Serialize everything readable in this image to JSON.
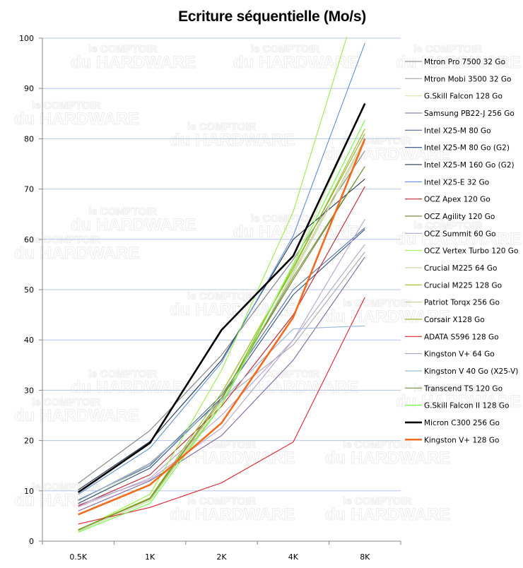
{
  "chart_data": {
    "type": "line",
    "title": "Ecriture séquentielle (Mo/s)",
    "xlabel": "",
    "ylabel": "",
    "categories": [
      "0.5K",
      "1K",
      "2K",
      "4K",
      "8K"
    ],
    "ylim": [
      0,
      100
    ],
    "yticks": [
      0,
      10,
      20,
      30,
      40,
      50,
      60,
      70,
      80,
      90,
      100
    ],
    "grid": true,
    "legend_position": "right",
    "watermark": [
      "le COMPTOIR",
      "du HARDWARE"
    ],
    "series": [
      {
        "name": "Mtron Pro 7500 32 Go",
        "color": "#7f7f7f",
        "values": [
          11.5,
          22.0,
          37.0,
          56.0,
          77.6
        ]
      },
      {
        "name": "Mtron Mobi 3500 32 Go",
        "color": "#a6a6a6",
        "values": [
          8.0,
          15.5,
          28.0,
          39.0,
          57.5
        ]
      },
      {
        "name": "G.Skill Falcon 128 Go",
        "color": "#d7e4a8",
        "values": [
          7.5,
          15.0,
          29.0,
          55.0,
          87.2
        ]
      },
      {
        "name": "Samsung PB22-J 256 Go",
        "color": "#8064a2",
        "values": [
          6.0,
          12.0,
          21.0,
          36.0,
          56.5
        ]
      },
      {
        "name": "Intel X25-M 80 Go",
        "color": "#4f6d9a",
        "values": [
          8.2,
          15.0,
          29.0,
          50.0,
          62.3
        ]
      },
      {
        "name": "Intel X25-M 80 Go (G2)",
        "color": "#2f4f7f",
        "values": [
          7.5,
          14.5,
          28.5,
          49.0,
          62.0
        ]
      },
      {
        "name": "Intel X25-M 160 Go (G2)",
        "color": "#1f3350",
        "values": [
          10.2,
          19.8,
          36.0,
          60.0,
          72.0
        ]
      },
      {
        "name": "Intel X25-E 32 Go",
        "color": "#5b8fd6",
        "values": [
          9.3,
          18.5,
          35.5,
          60.7,
          99.0
        ]
      },
      {
        "name": "OCZ Apex 120 Go",
        "color": "#c0202a",
        "values": [
          7.0,
          13.2,
          26.8,
          45.0,
          70.5
        ]
      },
      {
        "name": "OCZ Agility 120 Go",
        "color": "#6b7f2a",
        "values": [
          2.2,
          8.5,
          28.5,
          52.0,
          74.5
        ]
      },
      {
        "name": "OCZ Summit 60 Go",
        "color": "#b7a3d4",
        "values": [
          6.8,
          12.5,
          25.0,
          40.0,
          64.0
        ]
      },
      {
        "name": "OCZ Vertex Turbo 120 Go",
        "color": "#99ee44",
        "values": [
          2.1,
          9.3,
          34.0,
          65.5,
          112.0
        ]
      },
      {
        "name": "Crucial M225 64 Go",
        "color": "#c4d79b",
        "values": [
          2.0,
          8.0,
          27.5,
          53.0,
          79.5
        ]
      },
      {
        "name": "Crucial M225 128 Go",
        "color": "#9bbb22",
        "values": [
          2.3,
          8.6,
          29.5,
          54.0,
          82.0
        ]
      },
      {
        "name": "Patriot Torqx 256 Go",
        "color": "#b5cc8a",
        "values": [
          2.2,
          8.3,
          27.0,
          53.5,
          80.0
        ]
      },
      {
        "name": "Corsair X128 Go",
        "color": "#8fae1b",
        "values": [
          2.3,
          8.4,
          28.0,
          54.5,
          81.0
        ]
      },
      {
        "name": "ADATA S596 128 Go",
        "color": "#e0202a",
        "values": [
          3.4,
          6.7,
          11.6,
          19.7,
          48.5
        ]
      },
      {
        "name": "Kingston V+ 64 Go",
        "color": "#b3a2c7",
        "values": [
          7.2,
          12.2,
          22.5,
          40.0,
          59.0
        ]
      },
      {
        "name": "Kingston V 40 Go (X25-V)",
        "color": "#95b3d7",
        "values": [
          8.0,
          15.3,
          28.0,
          42.2,
          42.8
        ]
      },
      {
        "name": "Transcend TS 120 Go",
        "color": "#76923c",
        "values": [
          2.2,
          8.5,
          28.5,
          52.5,
          74.5
        ]
      },
      {
        "name": "G.Skill Falcon II 128 Go",
        "color": "#66ff33",
        "values": [
          1.8,
          7.5,
          27.0,
          55.0,
          83.7
        ]
      },
      {
        "name": "Micron C300 256 Go",
        "color": "#000000",
        "values": [
          9.7,
          19.5,
          42.0,
          56.7,
          87.0
        ]
      },
      {
        "name": "Kingston V+ 128 Go",
        "color": "#f26b1d",
        "values": [
          5.3,
          11.2,
          23.5,
          44.5,
          80.0
        ]
      }
    ]
  }
}
